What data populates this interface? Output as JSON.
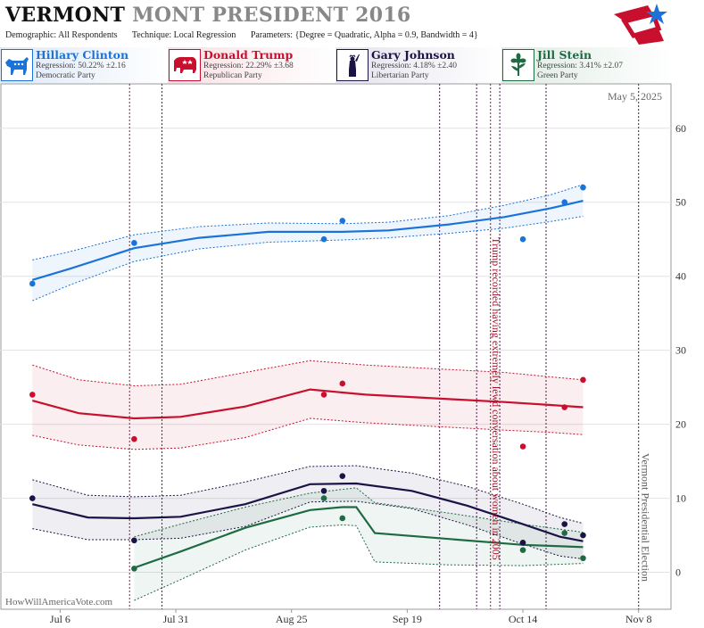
{
  "header": {
    "title_state": "VERMONT",
    "title_rest": "MONT PRESIDENT 2016",
    "demographic_label": "Demographic:",
    "demographic_value": "All Respondents",
    "technique_label": "Technique:",
    "technique_value": "Local Regression",
    "parameters_label": "Parameters:",
    "parameters_value": "{Degree = Quadratic, Alpha = 0.9, Bandwidth = 4}"
  },
  "candidates": [
    {
      "name": "Hillary Clinton",
      "regression": "Regression: 50.22% ±2.16",
      "party": "Democratic Party",
      "color": "#1a73d9",
      "icon": "donkey-icon"
    },
    {
      "name": "Donald Trump",
      "regression": "Regression: 22.29% ±3.68",
      "party": "Republican Party",
      "color": "#c8102e",
      "icon": "elephant-icon"
    },
    {
      "name": "Gary Johnson",
      "regression": "Regression: 4.18% ±2.40",
      "party": "Libertarian Party",
      "color": "#1a1446",
      "icon": "statue-of-liberty-icon"
    },
    {
      "name": "Jill Stein",
      "regression": "Regression: 3.41% ±2.07",
      "party": "Green Party",
      "color": "#1e6b43",
      "icon": "flower-icon"
    }
  ],
  "chart_data": {
    "type": "line",
    "date_label": "May 5, 2025",
    "watermark": "HowWillAmericaVote.com",
    "x_ticks": [
      "Jul 6",
      "Jul 31",
      "Aug 25",
      "Sep 19",
      "Oct 14",
      "Nov 8"
    ],
    "y_ticks": [
      0,
      10,
      20,
      30,
      40,
      50,
      60
    ],
    "ylim": [
      -5,
      66
    ],
    "xlim": [
      "2016-06-23",
      "2016-11-15"
    ],
    "grid": true,
    "annotations": [
      {
        "date": "2016-10-08",
        "text": "Trump recorded having extremely lewd conversation about women in 2005",
        "color": "#a0102a"
      },
      {
        "date": "2016-11-08",
        "text": "Vermont Presidential Election",
        "color": "#555555"
      }
    ],
    "event_lines": [
      {
        "date": "2016-07-21",
        "color": "#8b1a4a"
      },
      {
        "date": "2016-07-28",
        "color": "#1a3a6b"
      },
      {
        "date": "2016-09-26",
        "color": "#4a1a4a"
      },
      {
        "date": "2016-10-04",
        "color": "#4a1a4a"
      },
      {
        "date": "2016-10-07",
        "color": "#a0102a"
      },
      {
        "date": "2016-10-09",
        "color": "#4a1a4a"
      },
      {
        "date": "2016-10-19",
        "color": "#4a1a4a"
      },
      {
        "date": "2016-11-08",
        "color": "#4a1a4a"
      }
    ],
    "series": [
      {
        "name": "Hillary Clinton",
        "color": "#1a73d9",
        "points": [
          [
            "2016-06-30",
            39
          ],
          [
            "2016-07-22",
            44.5
          ],
          [
            "2016-09-01",
            45
          ],
          [
            "2016-09-05",
            47.5
          ],
          [
            "2016-10-14",
            45
          ],
          [
            "2016-10-23",
            50
          ],
          [
            "2016-10-27",
            52
          ]
        ],
        "trend": [
          [
            "2016-06-30",
            39.5
          ],
          [
            "2016-07-08",
            41
          ],
          [
            "2016-07-22",
            43.8
          ],
          [
            "2016-08-05",
            45.2
          ],
          [
            "2016-08-20",
            46
          ],
          [
            "2016-09-05",
            46
          ],
          [
            "2016-09-15",
            46.2
          ],
          [
            "2016-09-28",
            47
          ],
          [
            "2016-10-10",
            48
          ],
          [
            "2016-10-20",
            49.2
          ],
          [
            "2016-10-27",
            50.2
          ]
        ],
        "band_upper": [
          [
            "2016-06-30",
            42.2
          ],
          [
            "2016-07-08",
            43.3
          ],
          [
            "2016-07-22",
            45.6
          ],
          [
            "2016-08-05",
            46.7
          ],
          [
            "2016-08-20",
            47.2
          ],
          [
            "2016-09-05",
            47.1
          ],
          [
            "2016-09-15",
            47.3
          ],
          [
            "2016-09-28",
            48.2
          ],
          [
            "2016-10-10",
            49.6
          ],
          [
            "2016-10-20",
            51
          ],
          [
            "2016-10-27",
            52.4
          ]
        ],
        "band_lower": [
          [
            "2016-06-30",
            36.7
          ],
          [
            "2016-07-08",
            38.8
          ],
          [
            "2016-07-22",
            42
          ],
          [
            "2016-08-05",
            43.7
          ],
          [
            "2016-08-20",
            44.6
          ],
          [
            "2016-09-05",
            44.9
          ],
          [
            "2016-09-15",
            45.2
          ],
          [
            "2016-09-28",
            45.8
          ],
          [
            "2016-10-10",
            46.5
          ],
          [
            "2016-10-20",
            47.4
          ],
          [
            "2016-10-27",
            48.1
          ]
        ]
      },
      {
        "name": "Donald Trump",
        "color": "#c8102e",
        "points": [
          [
            "2016-06-30",
            24
          ],
          [
            "2016-07-22",
            18
          ],
          [
            "2016-09-01",
            24
          ],
          [
            "2016-09-05",
            25.5
          ],
          [
            "2016-10-14",
            17
          ],
          [
            "2016-10-23",
            22.3
          ],
          [
            "2016-10-27",
            26
          ]
        ],
        "trend": [
          [
            "2016-06-30",
            23.2
          ],
          [
            "2016-07-10",
            21.5
          ],
          [
            "2016-07-22",
            20.8
          ],
          [
            "2016-08-01",
            21
          ],
          [
            "2016-08-15",
            22.4
          ],
          [
            "2016-08-29",
            24.7
          ],
          [
            "2016-09-10",
            24
          ],
          [
            "2016-09-28",
            23.4
          ],
          [
            "2016-10-10",
            23
          ],
          [
            "2016-10-20",
            22.6
          ],
          [
            "2016-10-27",
            22.3
          ]
        ],
        "band_upper": [
          [
            "2016-06-30",
            28
          ],
          [
            "2016-07-10",
            26
          ],
          [
            "2016-07-22",
            25.2
          ],
          [
            "2016-08-01",
            25.4
          ],
          [
            "2016-08-15",
            27
          ],
          [
            "2016-08-29",
            28.6
          ],
          [
            "2016-09-10",
            28
          ],
          [
            "2016-09-28",
            27.4
          ],
          [
            "2016-10-10",
            27
          ],
          [
            "2016-10-20",
            26.4
          ],
          [
            "2016-10-27",
            26
          ]
        ],
        "band_lower": [
          [
            "2016-06-30",
            18.5
          ],
          [
            "2016-07-10",
            17.2
          ],
          [
            "2016-07-22",
            16.6
          ],
          [
            "2016-08-01",
            16.8
          ],
          [
            "2016-08-15",
            18.2
          ],
          [
            "2016-08-29",
            20.8
          ],
          [
            "2016-09-10",
            20.2
          ],
          [
            "2016-09-28",
            19.6
          ],
          [
            "2016-10-10",
            19.2
          ],
          [
            "2016-10-20",
            18.9
          ],
          [
            "2016-10-27",
            18.6
          ]
        ]
      },
      {
        "name": "Gary Johnson",
        "color": "#1a1446",
        "points": [
          [
            "2016-06-30",
            10
          ],
          [
            "2016-07-22",
            4.3
          ],
          [
            "2016-09-01",
            11
          ],
          [
            "2016-09-05",
            13
          ],
          [
            "2016-10-14",
            4
          ],
          [
            "2016-10-23",
            6.5
          ],
          [
            "2016-10-27",
            5
          ]
        ],
        "trend": [
          [
            "2016-06-30",
            9.2
          ],
          [
            "2016-07-12",
            7.4
          ],
          [
            "2016-07-22",
            7.3
          ],
          [
            "2016-08-01",
            7.5
          ],
          [
            "2016-08-15",
            9.2
          ],
          [
            "2016-08-29",
            11.9
          ],
          [
            "2016-09-08",
            12
          ],
          [
            "2016-09-20",
            11
          ],
          [
            "2016-10-02",
            9
          ],
          [
            "2016-10-14",
            6.5
          ],
          [
            "2016-10-22",
            4.8
          ],
          [
            "2016-10-27",
            4.2
          ]
        ],
        "band_upper": [
          [
            "2016-06-30",
            12.5
          ],
          [
            "2016-07-12",
            10.4
          ],
          [
            "2016-07-22",
            10.2
          ],
          [
            "2016-08-01",
            10.4
          ],
          [
            "2016-08-15",
            12.2
          ],
          [
            "2016-08-29",
            14.3
          ],
          [
            "2016-09-08",
            14.4
          ],
          [
            "2016-09-20",
            13.4
          ],
          [
            "2016-10-02",
            11.6
          ],
          [
            "2016-10-14",
            9.2
          ],
          [
            "2016-10-22",
            7.4
          ],
          [
            "2016-10-27",
            6.6
          ]
        ],
        "band_lower": [
          [
            "2016-06-30",
            5.9
          ],
          [
            "2016-07-12",
            4.4
          ],
          [
            "2016-07-22",
            4.4
          ],
          [
            "2016-08-01",
            4.6
          ],
          [
            "2016-08-15",
            6.2
          ],
          [
            "2016-08-29",
            9.5
          ],
          [
            "2016-09-08",
            9.6
          ],
          [
            "2016-09-20",
            8.6
          ],
          [
            "2016-10-02",
            6.4
          ],
          [
            "2016-10-14",
            3.8
          ],
          [
            "2016-10-22",
            2.2
          ],
          [
            "2016-10-27",
            1.8
          ]
        ]
      },
      {
        "name": "Jill Stein",
        "color": "#1e6b43",
        "points": [
          [
            "2016-07-22",
            0.5
          ],
          [
            "2016-09-01",
            10
          ],
          [
            "2016-09-05",
            7.3
          ],
          [
            "2016-10-14",
            3
          ],
          [
            "2016-10-23",
            5.3
          ],
          [
            "2016-10-27",
            1.9
          ]
        ],
        "trend": [
          [
            "2016-07-22",
            0.6
          ],
          [
            "2016-08-01",
            2.8
          ],
          [
            "2016-08-15",
            6
          ],
          [
            "2016-08-29",
            8.4
          ],
          [
            "2016-09-05",
            8.8
          ],
          [
            "2016-09-08",
            8.8
          ],
          [
            "2016-09-12",
            5.3
          ],
          [
            "2016-09-28",
            4.5
          ],
          [
            "2016-10-14",
            3.7
          ],
          [
            "2016-10-27",
            3.4
          ]
        ],
        "band_upper": [
          [
            "2016-07-22",
            4.8
          ],
          [
            "2016-08-01",
            6.5
          ],
          [
            "2016-08-15",
            8.8
          ],
          [
            "2016-08-29",
            10.7
          ],
          [
            "2016-09-05",
            11.2
          ],
          [
            "2016-09-08",
            11.4
          ],
          [
            "2016-09-12",
            9.4
          ],
          [
            "2016-09-28",
            8
          ],
          [
            "2016-10-14",
            6.5
          ],
          [
            "2016-10-27",
            5.4
          ]
        ],
        "band_lower": [
          [
            "2016-07-22",
            -3.8
          ],
          [
            "2016-08-01",
            -1
          ],
          [
            "2016-08-15",
            3
          ],
          [
            "2016-08-29",
            6.1
          ],
          [
            "2016-09-05",
            6.4
          ],
          [
            "2016-09-08",
            6.3
          ],
          [
            "2016-09-12",
            1.4
          ],
          [
            "2016-09-28",
            1
          ],
          [
            "2016-10-14",
            0.9
          ],
          [
            "2016-10-27",
            1.2
          ]
        ]
      }
    ]
  }
}
